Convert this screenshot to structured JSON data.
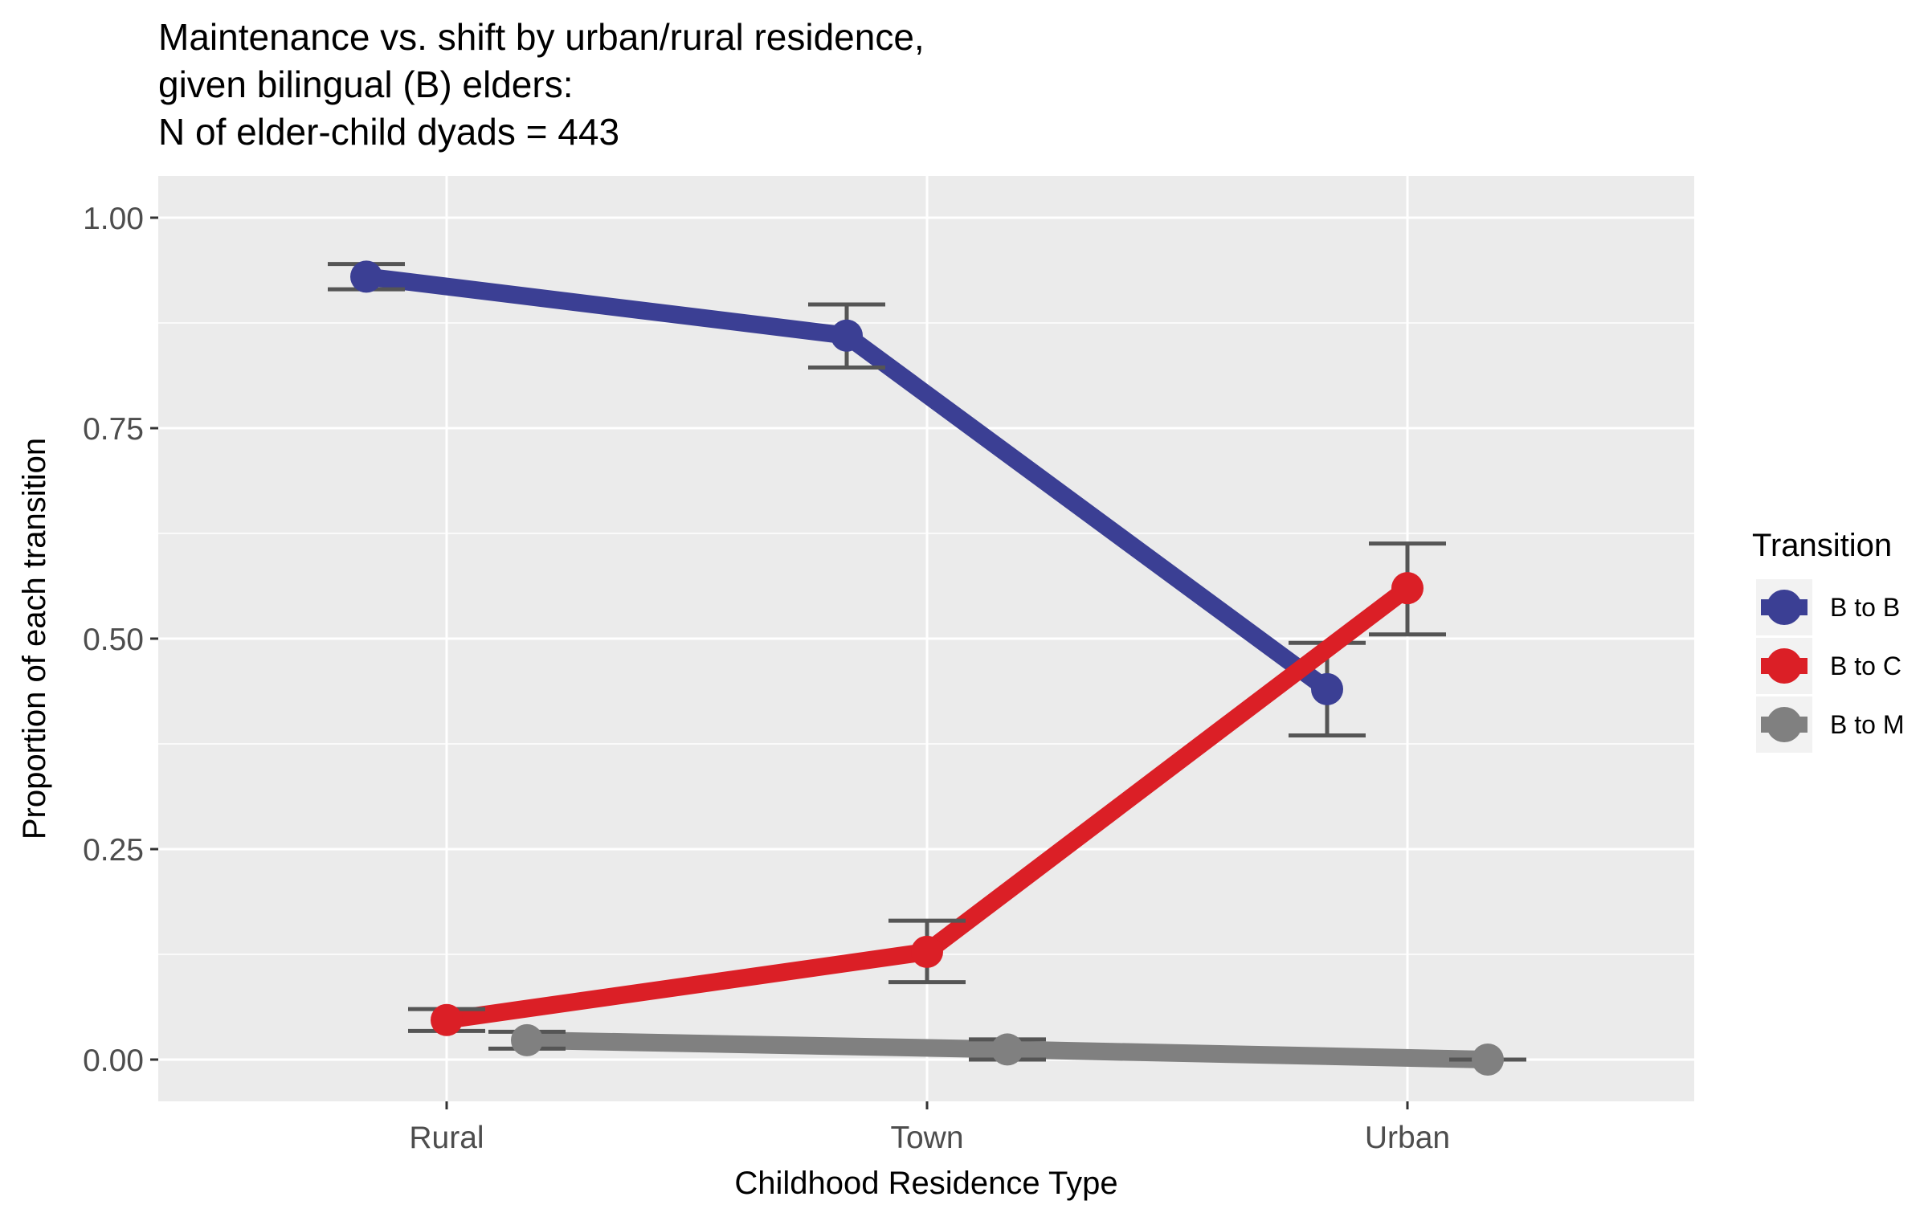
{
  "chart_data": {
    "type": "line",
    "title_lines": [
      "Maintenance vs. shift by urban/rural residence,",
      "given bilingual (B) elders:",
      "N of elder-child dyads = 443"
    ],
    "xlabel": "Childhood Residence Type",
    "ylabel": "Proportion of each transition",
    "categories": [
      "Rural",
      "Town",
      "Urban"
    ],
    "yticks": [
      "0.00",
      "0.25",
      "0.50",
      "0.75",
      "1.00"
    ],
    "ylim": [
      -0.05,
      1.05
    ],
    "grid": true,
    "legend": {
      "title": "Transition",
      "position": "right"
    },
    "error_bars": true,
    "series": [
      {
        "name": "B to B",
        "color": "#3b3f94",
        "values": [
          0.93,
          0.86,
          0.44
        ],
        "lower": [
          0.915,
          0.822,
          0.385
        ],
        "upper": [
          0.945,
          0.897,
          0.495
        ]
      },
      {
        "name": "B to C",
        "color": "#db1f26",
        "values": [
          0.047,
          0.128,
          0.56
        ],
        "lower": [
          0.034,
          0.092,
          0.505
        ],
        "upper": [
          0.06,
          0.165,
          0.613
        ]
      },
      {
        "name": "B to M",
        "color": "#808080",
        "values": [
          0.023,
          0.012,
          0.0
        ],
        "lower": [
          0.013,
          0.0,
          0.0
        ],
        "upper": [
          0.033,
          0.024,
          0.0
        ]
      }
    ]
  }
}
